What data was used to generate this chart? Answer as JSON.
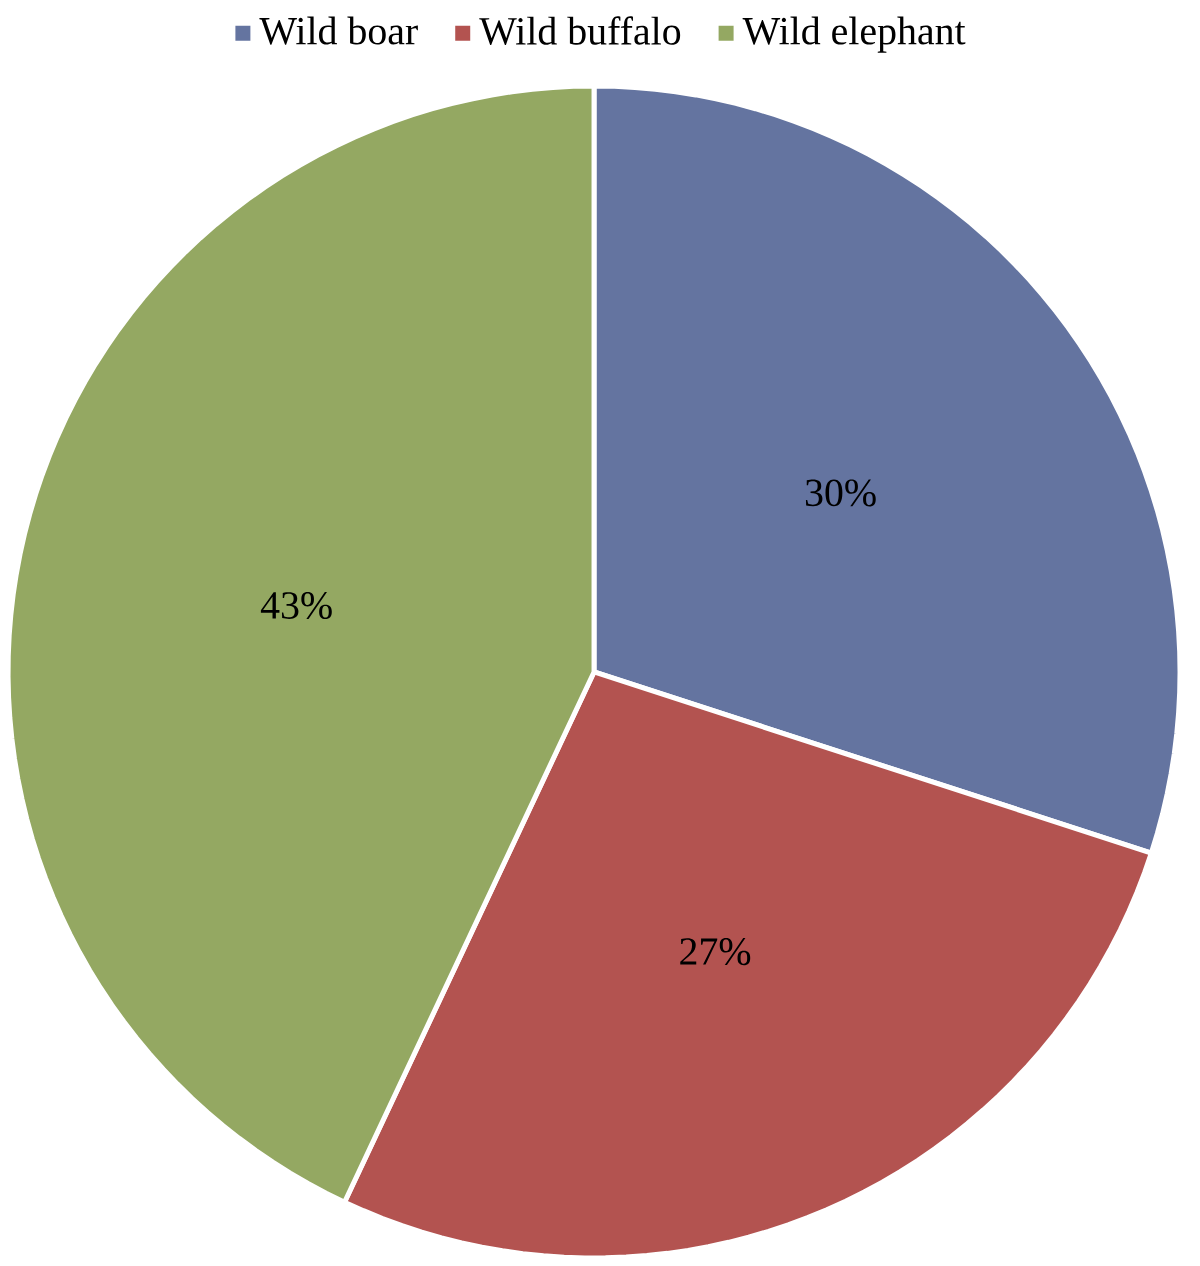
{
  "chart_data": {
    "type": "pie",
    "categories": [
      "Wild boar",
      "Wild buffalo",
      "Wild elephant"
    ],
    "values": [
      30,
      27,
      43
    ],
    "value_labels": [
      "30%",
      "27%",
      "43%"
    ],
    "colors": [
      "#6474a0",
      "#b35350",
      "#94a862"
    ],
    "legend": "top"
  }
}
